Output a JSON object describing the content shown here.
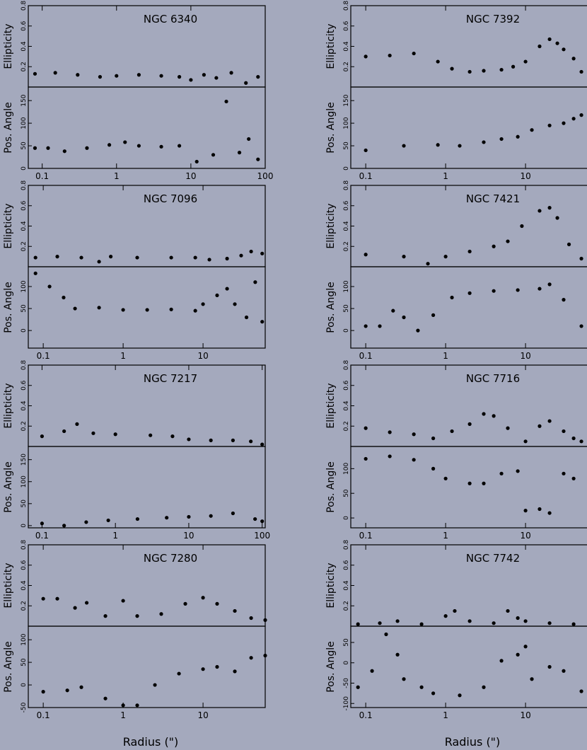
{
  "figure": {
    "background": "#a4a9bd",
    "ink": "#000000",
    "xlabel": "Radius (\")",
    "ylabel_ellipticity": "Ellipticity",
    "ylabel_pa": "Pos. Angle",
    "ell_ticks": [
      "0.2",
      "0.4",
      "0.6",
      "0.8"
    ],
    "xscale": "log"
  },
  "chart_data": [
    {
      "type": "scatter",
      "title": "NGC 6340",
      "xlim": [
        0.065,
        100
      ],
      "xticks": [
        "0.1",
        "1",
        "10",
        "100"
      ],
      "ell_ylim": [
        0,
        0.8
      ],
      "pa_ylim": [
        0,
        180
      ],
      "pa_ticks": [
        "0",
        "50",
        "100",
        "150"
      ],
      "ellipticity": [
        [
          0.08,
          0.13
        ],
        [
          0.15,
          0.14
        ],
        [
          0.3,
          0.12
        ],
        [
          0.6,
          0.1
        ],
        [
          1,
          0.11
        ],
        [
          2,
          0.12
        ],
        [
          4,
          0.11
        ],
        [
          7,
          0.1
        ],
        [
          10,
          0.07
        ],
        [
          15,
          0.12
        ],
        [
          22,
          0.09
        ],
        [
          35,
          0.14
        ],
        [
          55,
          0.04
        ],
        [
          80,
          0.1
        ]
      ],
      "position_angle": [
        [
          0.08,
          45
        ],
        [
          0.12,
          45
        ],
        [
          0.2,
          38
        ],
        [
          0.4,
          45
        ],
        [
          0.8,
          52
        ],
        [
          1.3,
          58
        ],
        [
          2,
          50
        ],
        [
          4,
          48
        ],
        [
          7,
          50
        ],
        [
          12,
          15
        ],
        [
          20,
          30
        ],
        [
          30,
          148
        ],
        [
          45,
          35
        ],
        [
          60,
          65
        ],
        [
          80,
          20
        ]
      ]
    },
    {
      "type": "scatter",
      "title": "NGC 7392",
      "xlim": [
        0.065,
        60
      ],
      "xticks": [
        "0.1",
        "1",
        "10"
      ],
      "ell_ylim": [
        0,
        0.8
      ],
      "pa_ylim": [
        0,
        180
      ],
      "pa_ticks": [
        "0",
        "50",
        "100",
        "150"
      ],
      "ellipticity": [
        [
          0.1,
          0.3
        ],
        [
          0.2,
          0.31
        ],
        [
          0.4,
          0.33
        ],
        [
          0.8,
          0.25
        ],
        [
          1.2,
          0.18
        ],
        [
          2,
          0.15
        ],
        [
          3,
          0.16
        ],
        [
          5,
          0.17
        ],
        [
          7,
          0.2
        ],
        [
          10,
          0.25
        ],
        [
          15,
          0.4
        ],
        [
          20,
          0.47
        ],
        [
          25,
          0.43
        ],
        [
          30,
          0.37
        ],
        [
          40,
          0.28
        ],
        [
          50,
          0.15
        ]
      ],
      "position_angle": [
        [
          0.1,
          40
        ],
        [
          0.3,
          50
        ],
        [
          0.8,
          52
        ],
        [
          1.5,
          50
        ],
        [
          3,
          58
        ],
        [
          5,
          65
        ],
        [
          8,
          70
        ],
        [
          12,
          85
        ],
        [
          20,
          95
        ],
        [
          30,
          100
        ],
        [
          40,
          110
        ],
        [
          50,
          118
        ]
      ]
    },
    {
      "type": "scatter",
      "title": "NGC 7096",
      "xlim": [
        0.065,
        60
      ],
      "xticks": [
        "0.1",
        "1",
        "10"
      ],
      "ell_ylim": [
        0,
        0.8
      ],
      "pa_ylim": [
        -40,
        145
      ],
      "pa_ticks": [
        "0",
        "50",
        "100"
      ],
      "ellipticity": [
        [
          0.08,
          0.09
        ],
        [
          0.15,
          0.1
        ],
        [
          0.3,
          0.09
        ],
        [
          0.5,
          0.05
        ],
        [
          0.7,
          0.1
        ],
        [
          1.5,
          0.09
        ],
        [
          4,
          0.09
        ],
        [
          8,
          0.09
        ],
        [
          12,
          0.07
        ],
        [
          20,
          0.08
        ],
        [
          30,
          0.11
        ],
        [
          40,
          0.15
        ],
        [
          55,
          0.13
        ]
      ],
      "position_angle": [
        [
          0.08,
          130
        ],
        [
          0.12,
          100
        ],
        [
          0.18,
          75
        ],
        [
          0.25,
          50
        ],
        [
          0.5,
          52
        ],
        [
          1,
          47
        ],
        [
          2,
          47
        ],
        [
          4,
          48
        ],
        [
          8,
          45
        ],
        [
          10,
          60
        ],
        [
          15,
          80
        ],
        [
          20,
          95
        ],
        [
          25,
          60
        ],
        [
          35,
          30
        ],
        [
          45,
          110
        ],
        [
          55,
          20
        ]
      ]
    },
    {
      "type": "scatter",
      "title": "NGC 7421",
      "xlim": [
        0.065,
        60
      ],
      "xticks": [
        "0.1",
        "1",
        "10"
      ],
      "ell_ylim": [
        0,
        0.8
      ],
      "pa_ylim": [
        -40,
        145
      ],
      "pa_ticks": [
        "0",
        "50",
        "100"
      ],
      "ellipticity": [
        [
          0.1,
          0.12
        ],
        [
          0.3,
          0.1
        ],
        [
          0.6,
          0.03
        ],
        [
          1,
          0.1
        ],
        [
          2,
          0.15
        ],
        [
          4,
          0.2
        ],
        [
          6,
          0.25
        ],
        [
          9,
          0.4
        ],
        [
          15,
          0.55
        ],
        [
          20,
          0.58
        ],
        [
          25,
          0.48
        ],
        [
          35,
          0.22
        ],
        [
          50,
          0.08
        ]
      ],
      "position_angle": [
        [
          0.1,
          10
        ],
        [
          0.15,
          10
        ],
        [
          0.22,
          45
        ],
        [
          0.3,
          30
        ],
        [
          0.45,
          0
        ],
        [
          0.7,
          35
        ],
        [
          1.2,
          75
        ],
        [
          2,
          85
        ],
        [
          4,
          90
        ],
        [
          8,
          92
        ],
        [
          15,
          95
        ],
        [
          20,
          105
        ],
        [
          30,
          70
        ],
        [
          50,
          10
        ]
      ]
    },
    {
      "type": "scatter",
      "title": "NGC 7217",
      "xlim": [
        0.065,
        110
      ],
      "xticks": [
        "0.1",
        "1",
        "10",
        "100"
      ],
      "ell_ylim": [
        0,
        0.8
      ],
      "pa_ylim": [
        -5,
        180
      ],
      "pa_ticks": [
        "0",
        "50",
        "100",
        "150"
      ],
      "ellipticity": [
        [
          0.1,
          0.1
        ],
        [
          0.2,
          0.15
        ],
        [
          0.3,
          0.22
        ],
        [
          0.5,
          0.13
        ],
        [
          1,
          0.12
        ],
        [
          3,
          0.11
        ],
        [
          6,
          0.1
        ],
        [
          10,
          0.07
        ],
        [
          20,
          0.06
        ],
        [
          40,
          0.06
        ],
        [
          70,
          0.05
        ],
        [
          100,
          0.02
        ]
      ],
      "position_angle": [
        [
          0.1,
          5
        ],
        [
          0.2,
          0
        ],
        [
          0.4,
          8
        ],
        [
          0.8,
          12
        ],
        [
          2,
          15
        ],
        [
          5,
          18
        ],
        [
          10,
          20
        ],
        [
          20,
          22
        ],
        [
          40,
          28
        ],
        [
          80,
          15
        ],
        [
          100,
          10
        ]
      ]
    },
    {
      "type": "scatter",
      "title": "NGC 7716",
      "xlim": [
        0.065,
        60
      ],
      "xticks": [
        "0.1",
        "1",
        "10"
      ],
      "ell_ylim": [
        0,
        0.8
      ],
      "pa_ylim": [
        -20,
        145
      ],
      "pa_ticks": [
        "0",
        "50",
        "100"
      ],
      "ellipticity": [
        [
          0.1,
          0.18
        ],
        [
          0.2,
          0.14
        ],
        [
          0.4,
          0.12
        ],
        [
          0.7,
          0.08
        ],
        [
          1.2,
          0.15
        ],
        [
          2,
          0.22
        ],
        [
          3,
          0.32
        ],
        [
          4,
          0.3
        ],
        [
          6,
          0.18
        ],
        [
          10,
          0.05
        ],
        [
          15,
          0.2
        ],
        [
          20,
          0.25
        ],
        [
          30,
          0.15
        ],
        [
          40,
          0.08
        ],
        [
          50,
          0.05
        ]
      ],
      "position_angle": [
        [
          0.1,
          120
        ],
        [
          0.2,
          125
        ],
        [
          0.4,
          118
        ],
        [
          0.7,
          100
        ],
        [
          1,
          80
        ],
        [
          2,
          70
        ],
        [
          3,
          70
        ],
        [
          5,
          90
        ],
        [
          8,
          95
        ],
        [
          10,
          15
        ],
        [
          15,
          18
        ],
        [
          20,
          10
        ],
        [
          30,
          90
        ],
        [
          40,
          80
        ]
      ]
    },
    {
      "type": "scatter",
      "title": "NGC 7280",
      "xlim": [
        0.065,
        60
      ],
      "xticks": [
        "0.1",
        "1",
        "10"
      ],
      "ell_ylim": [
        0,
        0.8
      ],
      "pa_ylim": [
        -50,
        130
      ],
      "pa_ticks": [
        "-50",
        "0",
        "50",
        "100"
      ],
      "ellipticity": [
        [
          0.1,
          0.27
        ],
        [
          0.15,
          0.27
        ],
        [
          0.25,
          0.18
        ],
        [
          0.35,
          0.23
        ],
        [
          0.6,
          0.1
        ],
        [
          1,
          0.25
        ],
        [
          1.5,
          0.1
        ],
        [
          3,
          0.12
        ],
        [
          6,
          0.22
        ],
        [
          10,
          0.28
        ],
        [
          15,
          0.22
        ],
        [
          25,
          0.15
        ],
        [
          40,
          0.08
        ],
        [
          60,
          0.06
        ]
      ],
      "position_angle": [
        [
          0.1,
          -15
        ],
        [
          0.2,
          -12
        ],
        [
          0.3,
          -5
        ],
        [
          0.6,
          -30
        ],
        [
          1,
          -45
        ],
        [
          1.5,
          -45
        ],
        [
          2.5,
          0
        ],
        [
          5,
          25
        ],
        [
          10,
          35
        ],
        [
          15,
          40
        ],
        [
          25,
          30
        ],
        [
          40,
          60
        ],
        [
          60,
          65
        ]
      ]
    },
    {
      "type": "scatter",
      "title": "NGC 7742",
      "xlim": [
        0.065,
        60
      ],
      "xticks": [
        "0.1",
        "1",
        "10"
      ],
      "ell_ylim": [
        0,
        0.8
      ],
      "pa_ylim": [
        -110,
        90
      ],
      "pa_ticks": [
        "-100",
        "-50",
        "0",
        "50"
      ],
      "ellipticity": [
        [
          0.08,
          0.02
        ],
        [
          0.15,
          0.03
        ],
        [
          0.25,
          0.05
        ],
        [
          0.5,
          0.02
        ],
        [
          1,
          0.1
        ],
        [
          1.3,
          0.15
        ],
        [
          2,
          0.05
        ],
        [
          4,
          0.03
        ],
        [
          6,
          0.15
        ],
        [
          8,
          0.08
        ],
        [
          10,
          0.05
        ],
        [
          20,
          0.03
        ],
        [
          40,
          0.02
        ]
      ],
      "position_angle": [
        [
          0.08,
          -60
        ],
        [
          0.12,
          -20
        ],
        [
          0.18,
          70
        ],
        [
          0.25,
          20
        ],
        [
          0.3,
          -40
        ],
        [
          0.5,
          -60
        ],
        [
          0.7,
          -75
        ],
        [
          1.5,
          -80
        ],
        [
          3,
          -60
        ],
        [
          5,
          5
        ],
        [
          8,
          20
        ],
        [
          10,
          40
        ],
        [
          12,
          -40
        ],
        [
          20,
          -10
        ],
        [
          30,
          -20
        ],
        [
          50,
          -70
        ]
      ]
    }
  ]
}
